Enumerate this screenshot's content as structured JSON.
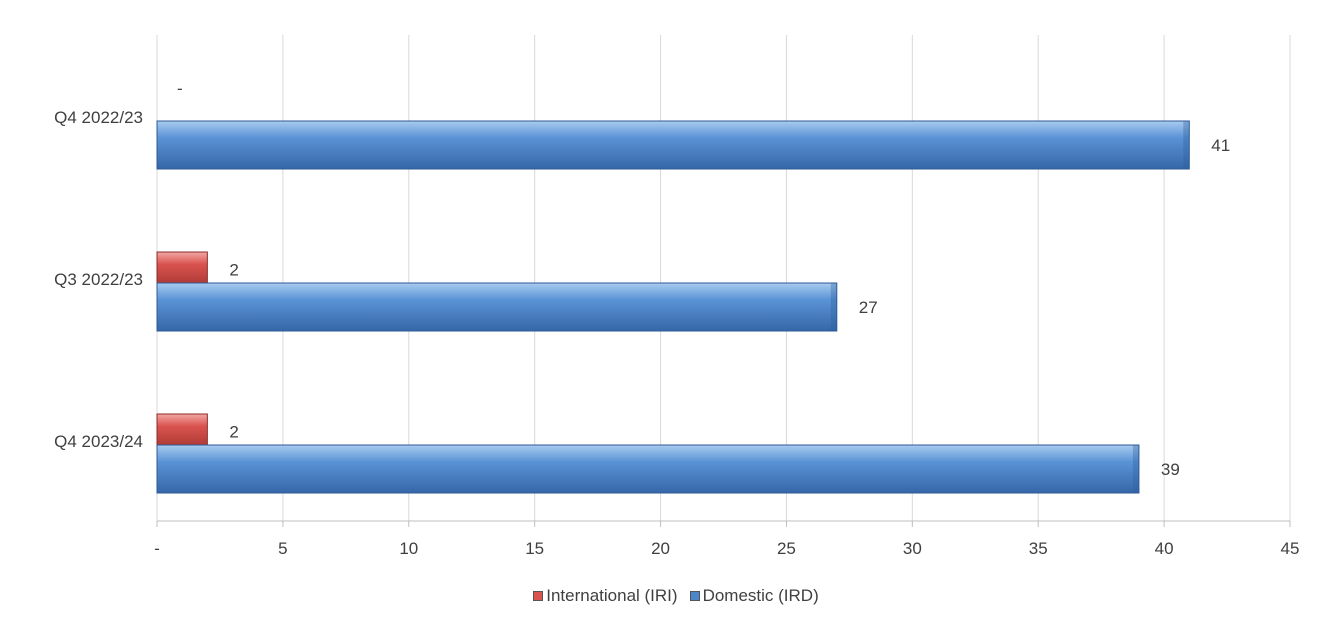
{
  "chart_data": {
    "type": "bar",
    "orientation": "horizontal",
    "title": "",
    "categories": [
      "Q4 2022/23",
      "Q3 2022/23",
      "Q4 2023/24"
    ],
    "series": [
      {
        "name": "International (IRI)",
        "values": [
          0,
          2,
          2
        ],
        "labels": [
          "-",
          "2",
          "2"
        ],
        "color": "#d9534f"
      },
      {
        "name": "Domestic (IRD)",
        "values": [
          41,
          27,
          39
        ],
        "labels": [
          "41",
          "27",
          "39"
        ],
        "color": "#4a86c8"
      }
    ],
    "xlim": [
      0,
      45
    ],
    "x_ticks": [
      "-",
      "5",
      "10",
      "15",
      "20",
      "25",
      "30",
      "35",
      "40",
      "45"
    ],
    "x_tick_values": [
      0,
      5,
      10,
      15,
      20,
      25,
      30,
      35,
      40,
      45
    ],
    "grid": true,
    "legend_position": "bottom"
  }
}
